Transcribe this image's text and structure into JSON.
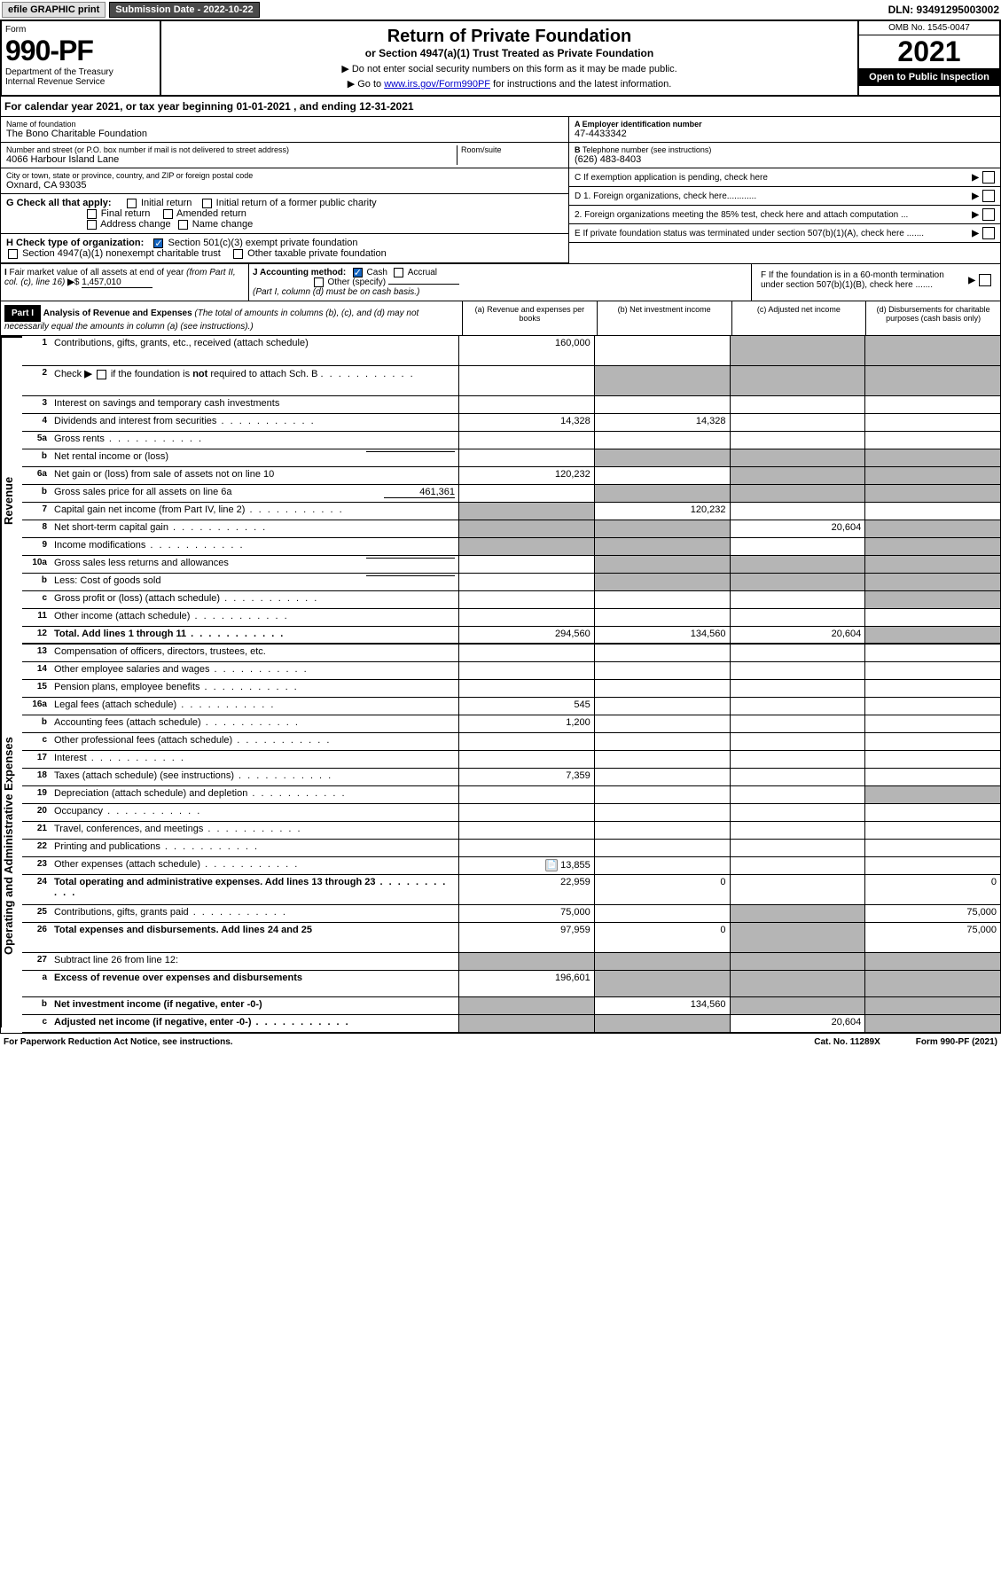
{
  "topbar": {
    "efile": "efile GRAPHIC print",
    "submission": "Submission Date - 2022-10-22",
    "dln": "DLN: 93491295003002"
  },
  "header": {
    "form_label": "Form",
    "form_num": "990-PF",
    "dept": "Department of the Treasury",
    "irs": "Internal Revenue Service",
    "title": "Return of Private Foundation",
    "subtitle": "or Section 4947(a)(1) Trust Treated as Private Foundation",
    "note1": "▶ Do not enter social security numbers on this form as it may be made public.",
    "note2_pre": "▶ Go to ",
    "note2_link": "www.irs.gov/Form990PF",
    "note2_post": " for instructions and the latest information.",
    "omb": "OMB No. 1545-0047",
    "year": "2021",
    "open": "Open to Public Inspection"
  },
  "calyear": "For calendar year 2021, or tax year beginning 01-01-2021                          , and ending 12-31-2021",
  "info": {
    "name_label": "Name of foundation",
    "name": "The Bono Charitable Foundation",
    "addr_label": "Number and street (or P.O. box number if mail is not delivered to street address)",
    "addr": "4066 Harbour Island Lane",
    "room_label": "Room/suite",
    "city_label": "City or town, state or province, country, and ZIP or foreign postal code",
    "city": "Oxnard, CA  93035",
    "a_label": "A Employer identification number",
    "a_val": "47-4433342",
    "b_label": "B Telephone number (see instructions)",
    "b_val": "(626) 483-8403",
    "c_label": "C If exemption application is pending, check here",
    "d1": "D 1. Foreign organizations, check here............",
    "d2": "2. Foreign organizations meeting the 85% test, check here and attach computation ...",
    "e_label": "E  If private foundation status was terminated under section 507(b)(1)(A), check here .......",
    "f_label": "F  If the foundation is in a 60-month termination under section 507(b)(1)(B), check here .......",
    "g_label": "G Check all that apply:",
    "g_opts": [
      "Initial return",
      "Initial return of a former public charity",
      "Final return",
      "Amended return",
      "Address change",
      "Name change"
    ],
    "h_label": "H Check type of organization:",
    "h_opts": [
      "Section 501(c)(3) exempt private foundation",
      "Section 4947(a)(1) nonexempt charitable trust",
      "Other taxable private foundation"
    ],
    "i_label": "I Fair market value of all assets at end of year (from Part II, col. (c), line 16)",
    "i_val": "1,457,010",
    "j_label": "J Accounting method:",
    "j_opts": [
      "Cash",
      "Accrual",
      "Other (specify)"
    ],
    "j_note": "(Part I, column (d) must be on cash basis.)"
  },
  "part1": {
    "label": "Part I",
    "title": "Analysis of Revenue and Expenses",
    "title_note": "(The total of amounts in columns (b), (c), and (d) may not necessarily equal the amounts in column (a) (see instructions).)",
    "cols": [
      "(a)   Revenue and expenses per books",
      "(b)   Net investment income",
      "(c)   Adjusted net income",
      "(d)  Disbursements for charitable purposes (cash basis only)"
    ]
  },
  "sidelabels": {
    "rev": "Revenue",
    "exp": "Operating and Administrative Expenses"
  },
  "lines": {
    "l1": {
      "n": "1",
      "d": "Contributions, gifts, grants, etc., received (attach schedule)",
      "a": "160,000"
    },
    "l2": {
      "n": "2",
      "d": "Check ▶ ☐ if the foundation is not required to attach Sch. B"
    },
    "l3": {
      "n": "3",
      "d": "Interest on savings and temporary cash investments"
    },
    "l4": {
      "n": "4",
      "d": "Dividends and interest from securities",
      "a": "14,328",
      "b": "14,328"
    },
    "l5a": {
      "n": "5a",
      "d": "Gross rents"
    },
    "l5b": {
      "n": "b",
      "d": "Net rental income or (loss)"
    },
    "l6a": {
      "n": "6a",
      "d": "Net gain or (loss) from sale of assets not on line 10",
      "a": "120,232"
    },
    "l6b": {
      "n": "b",
      "d": "Gross sales price for all assets on line 6a",
      "v": "461,361"
    },
    "l7": {
      "n": "7",
      "d": "Capital gain net income (from Part IV, line 2)",
      "b": "120,232"
    },
    "l8": {
      "n": "8",
      "d": "Net short-term capital gain",
      "c": "20,604"
    },
    "l9": {
      "n": "9",
      "d": "Income modifications"
    },
    "l10a": {
      "n": "10a",
      "d": "Gross sales less returns and allowances"
    },
    "l10b": {
      "n": "b",
      "d": "Less: Cost of goods sold"
    },
    "l10c": {
      "n": "c",
      "d": "Gross profit or (loss) (attach schedule)"
    },
    "l11": {
      "n": "11",
      "d": "Other income (attach schedule)"
    },
    "l12": {
      "n": "12",
      "d": "Total. Add lines 1 through 11",
      "a": "294,560",
      "b": "134,560",
      "c": "20,604"
    },
    "l13": {
      "n": "13",
      "d": "Compensation of officers, directors, trustees, etc."
    },
    "l14": {
      "n": "14",
      "d": "Other employee salaries and wages"
    },
    "l15": {
      "n": "15",
      "d": "Pension plans, employee benefits"
    },
    "l16a": {
      "n": "16a",
      "d": "Legal fees (attach schedule)",
      "a": "545"
    },
    "l16b": {
      "n": "b",
      "d": "Accounting fees (attach schedule)",
      "a": "1,200"
    },
    "l16c": {
      "n": "c",
      "d": "Other professional fees (attach schedule)"
    },
    "l17": {
      "n": "17",
      "d": "Interest"
    },
    "l18": {
      "n": "18",
      "d": "Taxes (attach schedule) (see instructions)",
      "a": "7,359"
    },
    "l19": {
      "n": "19",
      "d": "Depreciation (attach schedule) and depletion"
    },
    "l20": {
      "n": "20",
      "d": "Occupancy"
    },
    "l21": {
      "n": "21",
      "d": "Travel, conferences, and meetings"
    },
    "l22": {
      "n": "22",
      "d": "Printing and publications"
    },
    "l23": {
      "n": "23",
      "d": "Other expenses (attach schedule)",
      "a": "13,855"
    },
    "l24": {
      "n": "24",
      "d": "Total operating and administrative expenses. Add lines 13 through 23",
      "a": "22,959",
      "b": "0",
      "dd": "0"
    },
    "l25": {
      "n": "25",
      "d": "Contributions, gifts, grants paid",
      "a": "75,000",
      "dd": "75,000"
    },
    "l26": {
      "n": "26",
      "d": "Total expenses and disbursements. Add lines 24 and 25",
      "a": "97,959",
      "b": "0",
      "dd": "75,000"
    },
    "l27": {
      "n": "27",
      "d": "Subtract line 26 from line 12:"
    },
    "l27a": {
      "n": "a",
      "d": "Excess of revenue over expenses and disbursements",
      "a": "196,601"
    },
    "l27b": {
      "n": "b",
      "d": "Net investment income (if negative, enter -0-)",
      "b": "134,560"
    },
    "l27c": {
      "n": "c",
      "d": "Adjusted net income (if negative, enter -0-)",
      "c": "20,604"
    }
  },
  "footer": {
    "left": "For Paperwork Reduction Act Notice, see instructions.",
    "mid": "Cat. No. 11289X",
    "right": "Form 990-PF (2021)"
  }
}
